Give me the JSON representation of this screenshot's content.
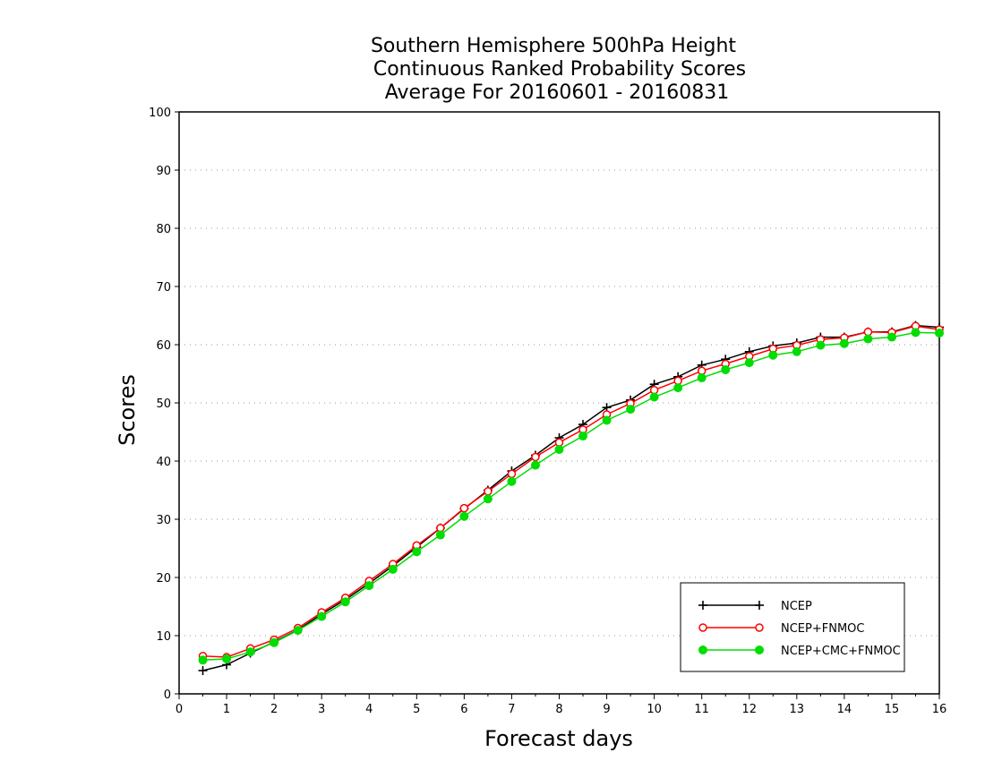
{
  "chart_data": {
    "type": "line",
    "title_lines": [
      "Southern Hemisphere 500hPa Height",
      "Continuous Ranked Probability Scores",
      "Average For 20160601 - 20160831"
    ],
    "xlabel": "Forecast days",
    "ylabel": "Scores",
    "xlim": [
      0,
      16
    ],
    "ylim": [
      0,
      100
    ],
    "x_ticks": [
      "0",
      "1",
      "2",
      "3",
      "4",
      "5",
      "6",
      "7",
      "8",
      "9",
      "10",
      "11",
      "12",
      "13",
      "14",
      "15",
      "16"
    ],
    "y_ticks": [
      "0",
      "10",
      "20",
      "30",
      "40",
      "50",
      "60",
      "70",
      "80",
      "90",
      "100"
    ],
    "grid": "horizontal dotted",
    "legend_position": "bottom-right",
    "x": [
      0.5,
      1,
      1.5,
      2,
      2.5,
      3,
      3.5,
      4,
      4.5,
      5,
      5.5,
      6,
      6.5,
      7,
      7.5,
      8,
      8.5,
      9,
      9.5,
      10,
      10.5,
      11,
      11.5,
      12,
      12.5,
      13,
      13.5,
      14,
      14.5,
      15,
      15.5,
      16
    ],
    "series": [
      {
        "name": "NCEP",
        "color": "#000000",
        "marker": "plus",
        "values": [
          4.0,
          5.0,
          7.0,
          8.9,
          11.0,
          13.7,
          16.2,
          19.0,
          22.0,
          25.2,
          28.5,
          31.8,
          35.0,
          38.3,
          41.0,
          44.0,
          46.3,
          49.2,
          50.5,
          53.2,
          54.5,
          56.5,
          57.5,
          58.8,
          59.8,
          60.3,
          61.3,
          61.3,
          62.2,
          62.2,
          63.3,
          63.0
        ]
      },
      {
        "name": "NCEP+FNMOC",
        "color": "#ff0000",
        "marker": "open-circle",
        "values": [
          6.5,
          6.3,
          7.8,
          9.3,
          11.3,
          14.0,
          16.5,
          19.4,
          22.3,
          25.5,
          28.5,
          31.9,
          34.8,
          37.8,
          40.7,
          43.2,
          45.4,
          48.0,
          49.9,
          52.2,
          53.8,
          55.5,
          56.7,
          58.0,
          59.3,
          59.9,
          60.9,
          61.2,
          62.2,
          62.1,
          63.2,
          62.6
        ]
      },
      {
        "name": "NCEP+CMC+FNMOC",
        "color": "#00dd00",
        "marker": "filled-circle",
        "values": [
          5.8,
          6.0,
          7.2,
          8.8,
          10.9,
          13.3,
          15.8,
          18.6,
          21.4,
          24.4,
          27.3,
          30.5,
          33.5,
          36.5,
          39.3,
          42.0,
          44.3,
          47.0,
          48.9,
          51.0,
          52.6,
          54.3,
          55.7,
          56.9,
          58.2,
          58.8,
          59.9,
          60.2,
          61.0,
          61.3,
          62.1,
          62.0
        ]
      }
    ]
  }
}
